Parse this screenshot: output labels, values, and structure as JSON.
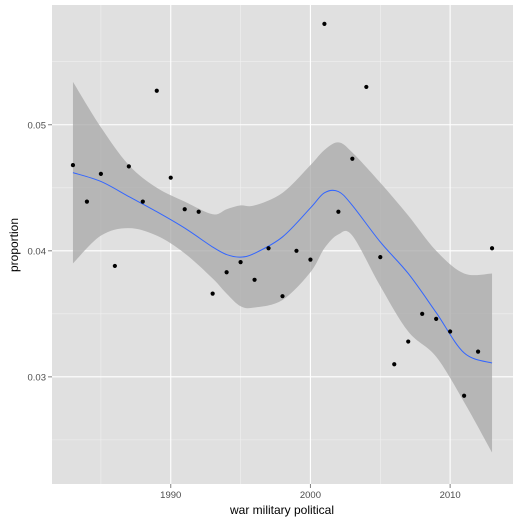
{
  "chart_data": {
    "type": "scatter",
    "xlabel": "war military political",
    "ylabel": "proportion",
    "xlim": [
      1981.5,
      2014.5
    ],
    "ylim": [
      0.0215,
      0.0595
    ],
    "x_ticks": [
      1990,
      2000,
      2010
    ],
    "x_tick_labels": [
      "1990",
      "2000",
      "2010"
    ],
    "y_ticks": [
      0.03,
      0.04,
      0.05
    ],
    "y_tick_labels": [
      "0.03",
      "0.04",
      "0.05"
    ],
    "grid": true,
    "legend": "none",
    "colors": {
      "panel": "#e0e0e0",
      "grid_major": "#ffffff",
      "grid_minor": "#f0f0f0",
      "points": "#000000",
      "smooth_line": "#3366ff",
      "ribbon": "#a8a8a8"
    },
    "series": [
      {
        "kind": "points",
        "x": [
          1983,
          1984,
          1985,
          1986,
          1987,
          1988,
          1989,
          1990,
          1991,
          1992,
          1993,
          1994,
          1995,
          1996,
          1997,
          1998,
          1999,
          2000,
          2001,
          2002,
          2003,
          2004,
          2005,
          2006,
          2007,
          2008,
          2009,
          2010,
          2011,
          2012,
          2013
        ],
        "y": [
          0.0468,
          0.0439,
          0.0461,
          0.0388,
          0.0467,
          0.0439,
          0.0527,
          0.0458,
          0.0433,
          0.0431,
          0.0366,
          0.0383,
          0.0391,
          0.0377,
          0.0402,
          0.0364,
          0.04,
          0.0393,
          0.058,
          0.0431,
          0.0473,
          0.053,
          0.0395,
          0.031,
          0.0328,
          0.035,
          0.0346,
          0.0336,
          0.0285,
          0.032,
          0.0402
        ]
      },
      {
        "kind": "smooth",
        "x": [
          1983,
          1985,
          1987,
          1989,
          1991,
          1993,
          1994,
          1995,
          1996,
          1998,
          2000,
          2001,
          2002,
          2003,
          2005,
          2007,
          2009,
          2011,
          2013
        ],
        "y": [
          0.0462,
          0.0455,
          0.0443,
          0.0431,
          0.0418,
          0.0403,
          0.0397,
          0.0395,
          0.0398,
          0.0411,
          0.0434,
          0.0446,
          0.0447,
          0.0436,
          0.0407,
          0.0382,
          0.0351,
          0.0319,
          0.0311
        ],
        "lower": [
          0.039,
          0.0412,
          0.0418,
          0.0412,
          0.0398,
          0.0378,
          0.0366,
          0.0356,
          0.0355,
          0.0361,
          0.0383,
          0.0402,
          0.0413,
          0.0412,
          0.0372,
          0.0336,
          0.0316,
          0.028,
          0.024
        ],
        "upper": [
          0.0534,
          0.0498,
          0.0468,
          0.045,
          0.0439,
          0.0429,
          0.0433,
          0.0436,
          0.0436,
          0.0446,
          0.0468,
          0.048,
          0.0486,
          0.0478,
          0.0454,
          0.0428,
          0.04,
          0.0382,
          0.0382
        ]
      }
    ]
  }
}
